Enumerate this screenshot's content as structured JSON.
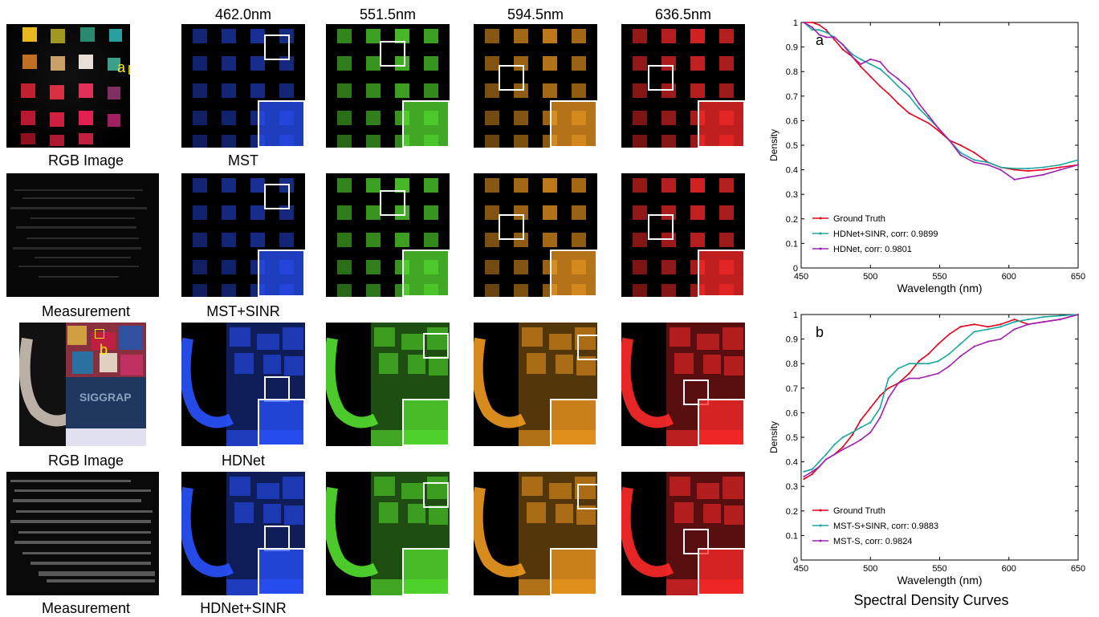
{
  "wavelength_headers": [
    "462.0nm",
    "551.5nm",
    "594.5nm",
    "636.5nm"
  ],
  "row_labels": {
    "rgb_image_1": "RGB Image",
    "mst": "MST",
    "measurement_1": "Measurement",
    "mst_sinr": "MST+SINR",
    "rgb_image_2": "RGB Image",
    "hdnet": "HDNet",
    "measurement_2": "Measurement",
    "hdnet_sinr": "HDNet+SINR"
  },
  "markers": {
    "a": "a",
    "b": "b"
  },
  "colors": {
    "blue_band": "#2a52ff",
    "green_band": "#55e030",
    "orange_band": "#f09a20",
    "red_band": "#ff2a2a",
    "marker_yellow": "#ffee00",
    "ground_truth": "#e8001c",
    "sinr_curve": "#1aa7a0",
    "baseline_curve": "#a020b0"
  },
  "figure_caption": "Spectral Density Curves",
  "chart_data": [
    {
      "type": "line",
      "panel_label": "a",
      "xlabel": "Wavelength (nm)",
      "ylabel": "Density",
      "xlim": [
        450,
        650
      ],
      "ylim": [
        0,
        1
      ],
      "xticks": [
        "450",
        "500",
        "550",
        "600",
        "650"
      ],
      "yticks": [
        "0",
        "0.1",
        "0.2",
        "0.3",
        "0.4",
        "0.5",
        "0.6",
        "0.7",
        "0.8",
        "0.9",
        "1"
      ],
      "legend_position": "bottom-left",
      "series": [
        {
          "name": "Ground Truth",
          "color": "#e8001c",
          "x": [
            452,
            458,
            463,
            468,
            474,
            480,
            487,
            493,
            500,
            507,
            513,
            520,
            528,
            535,
            542,
            549,
            557,
            565,
            575,
            585,
            594,
            604,
            614,
            625,
            637,
            650
          ],
          "y": [
            1.0,
            1.0,
            0.99,
            0.97,
            0.93,
            0.89,
            0.86,
            0.82,
            0.78,
            0.74,
            0.71,
            0.67,
            0.63,
            0.61,
            0.59,
            0.56,
            0.52,
            0.5,
            0.47,
            0.43,
            0.41,
            0.4,
            0.395,
            0.4,
            0.41,
            0.42
          ]
        },
        {
          "name": "HDNet+SINR, corr: 0.9899",
          "color": "#1aa7a0",
          "x": [
            452,
            458,
            463,
            468,
            474,
            480,
            487,
            493,
            500,
            507,
            513,
            520,
            528,
            535,
            542,
            549,
            557,
            565,
            575,
            585,
            594,
            604,
            614,
            625,
            637,
            650
          ],
          "y": [
            1.0,
            0.97,
            0.97,
            0.96,
            0.94,
            0.91,
            0.87,
            0.85,
            0.83,
            0.81,
            0.78,
            0.74,
            0.7,
            0.65,
            0.61,
            0.57,
            0.52,
            0.47,
            0.44,
            0.43,
            0.41,
            0.405,
            0.405,
            0.41,
            0.42,
            0.44
          ]
        },
        {
          "name": "HDNet, corr: 0.9801",
          "color": "#a020b0",
          "x": [
            452,
            458,
            463,
            468,
            474,
            480,
            487,
            493,
            500,
            507,
            513,
            520,
            528,
            535,
            542,
            549,
            557,
            565,
            575,
            585,
            594,
            604,
            614,
            625,
            637,
            650
          ],
          "y": [
            1.0,
            0.98,
            0.95,
            0.94,
            0.94,
            0.91,
            0.86,
            0.83,
            0.85,
            0.84,
            0.8,
            0.77,
            0.73,
            0.67,
            0.62,
            0.57,
            0.52,
            0.46,
            0.43,
            0.42,
            0.4,
            0.36,
            0.37,
            0.38,
            0.4,
            0.42
          ]
        }
      ]
    },
    {
      "type": "line",
      "panel_label": "b",
      "xlabel": "Wavelength (nm)",
      "ylabel": "Density",
      "xlim": [
        450,
        650
      ],
      "ylim": [
        0,
        1
      ],
      "xticks": [
        "450",
        "500",
        "550",
        "600",
        "650"
      ],
      "yticks": [
        "0",
        "0.1",
        "0.2",
        "0.3",
        "0.4",
        "0.5",
        "0.6",
        "0.7",
        "0.8",
        "0.9",
        "1"
      ],
      "legend_position": "bottom-left",
      "series": [
        {
          "name": "Ground Truth",
          "color": "#e8001c",
          "x": [
            452,
            458,
            463,
            468,
            474,
            480,
            487,
            493,
            500,
            507,
            513,
            520,
            528,
            535,
            542,
            549,
            557,
            565,
            575,
            585,
            594,
            604,
            614,
            625,
            637,
            650
          ],
          "y": [
            0.33,
            0.35,
            0.38,
            0.41,
            0.43,
            0.46,
            0.51,
            0.57,
            0.62,
            0.67,
            0.7,
            0.72,
            0.76,
            0.81,
            0.84,
            0.88,
            0.92,
            0.95,
            0.96,
            0.95,
            0.96,
            0.98,
            0.96,
            0.97,
            0.98,
            1.0
          ]
        },
        {
          "name": "MST-S+SINR, corr: 0.9883",
          "color": "#1aa7a0",
          "x": [
            452,
            458,
            463,
            468,
            474,
            480,
            487,
            493,
            500,
            507,
            513,
            520,
            528,
            535,
            542,
            549,
            557,
            565,
            575,
            585,
            594,
            604,
            614,
            625,
            637,
            650
          ],
          "y": [
            0.36,
            0.37,
            0.4,
            0.43,
            0.47,
            0.5,
            0.52,
            0.54,
            0.56,
            0.62,
            0.74,
            0.78,
            0.8,
            0.8,
            0.8,
            0.81,
            0.84,
            0.88,
            0.93,
            0.94,
            0.95,
            0.97,
            0.98,
            0.99,
            0.995,
            1.0
          ]
        },
        {
          "name": "MST-S, corr: 0.9824",
          "color": "#a020b0",
          "x": [
            452,
            458,
            463,
            468,
            474,
            480,
            487,
            493,
            500,
            507,
            513,
            520,
            528,
            535,
            542,
            549,
            557,
            565,
            575,
            585,
            594,
            604,
            614,
            625,
            637,
            650
          ],
          "y": [
            0.34,
            0.36,
            0.38,
            0.41,
            0.43,
            0.45,
            0.47,
            0.49,
            0.52,
            0.58,
            0.66,
            0.72,
            0.74,
            0.74,
            0.75,
            0.76,
            0.79,
            0.83,
            0.87,
            0.89,
            0.9,
            0.94,
            0.96,
            0.97,
            0.98,
            1.0
          ]
        }
      ]
    }
  ]
}
